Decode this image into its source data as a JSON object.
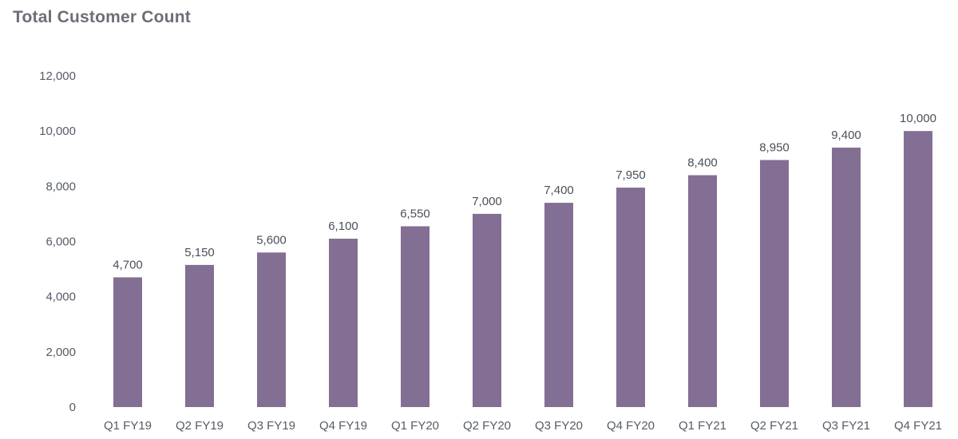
{
  "chart_data": {
    "type": "bar",
    "title": "Total Customer Count",
    "xlabel": "",
    "ylabel": "",
    "categories": [
      "Q1 FY19",
      "Q2 FY19",
      "Q3 FY19",
      "Q4 FY19",
      "Q1 FY20",
      "Q2 FY20",
      "Q3 FY20",
      "Q4 FY20",
      "Q1 FY21",
      "Q2 FY21",
      "Q3 FY21",
      "Q4 FY21"
    ],
    "values": [
      4700,
      5150,
      5600,
      6100,
      6550,
      7000,
      7400,
      7950,
      8400,
      8950,
      9400,
      10000
    ],
    "value_labels": [
      "4,700",
      "5,150",
      "5,600",
      "6,100",
      "6,550",
      "7,000",
      "7,400",
      "7,950",
      "8,400",
      "8,950",
      "9,400",
      "10,000"
    ],
    "ylim": [
      0,
      12000
    ],
    "yticks": [
      0,
      2000,
      4000,
      6000,
      8000,
      10000,
      12000
    ],
    "ytick_labels": [
      "0",
      "2,000",
      "4,000",
      "6,000",
      "8,000",
      "10,000",
      "12,000"
    ],
    "grid": false,
    "legend": "none",
    "bar_color": "#836f93"
  }
}
